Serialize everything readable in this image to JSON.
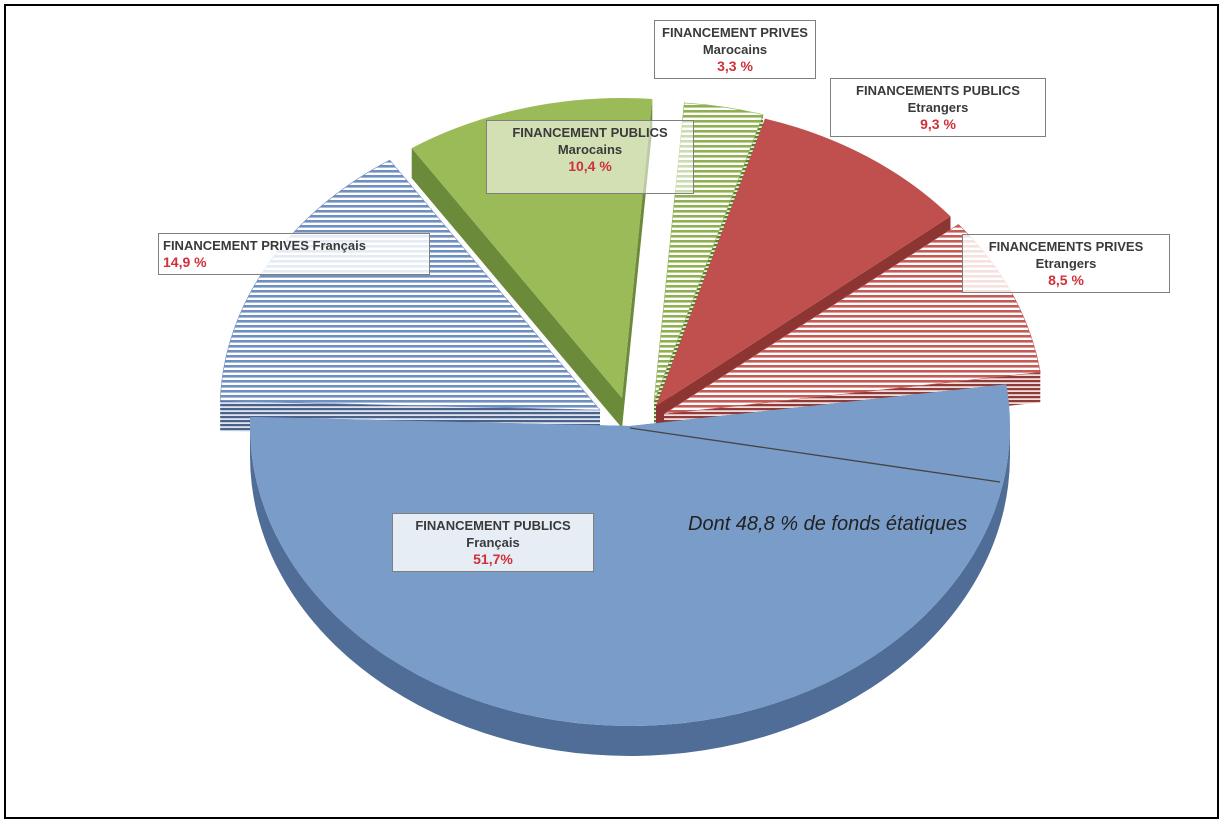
{
  "chart_data": {
    "type": "pie",
    "slices": [
      {
        "label_line1": "FINANCEMENT PUBLICS",
        "label_line2": "Français",
        "value_text": "51,7%",
        "value": 51.7,
        "color": "#7a9cc8",
        "side_color": "#4f6d96",
        "pattern": "solid"
      },
      {
        "label_line1": "FINANCEMENT PRIVES Français",
        "label_line2": "",
        "value_text": "14,9 %",
        "value": 14.9,
        "color": "#6f8fc0",
        "side_color": "#4a628a",
        "pattern": "stripes"
      },
      {
        "label_line1": "FINANCEMENT PUBLICS",
        "label_line2": "Marocains",
        "value_text": "10,4 %",
        "value": 10.4,
        "color": "#9bbb59",
        "side_color": "#6b8a3a",
        "pattern": "solid"
      },
      {
        "label_line1": "FINANCEMENT PRIVES",
        "label_line2": "Marocains",
        "value_text": "3,3 %",
        "value": 3.3,
        "color": "#8fb050",
        "side_color": "#5d7d2e",
        "pattern": "stripes"
      },
      {
        "label_line1": "FINANCEMENTS PUBLICS",
        "label_line2": "Etrangers",
        "value_text": "9,3  %",
        "value": 9.3,
        "color": "#c0504d",
        "side_color": "#8c3533",
        "pattern": "solid"
      },
      {
        "label_line1": "FINANCEMENTS PRIVES",
        "label_line2": "Etrangers",
        "value_text": "8,5 %",
        "value": 8.5,
        "color": "#c65a57",
        "side_color": "#8f3b39",
        "pattern": "stripes"
      }
    ],
    "annotation": "Dont 48,8 % de fonds étatiques"
  }
}
